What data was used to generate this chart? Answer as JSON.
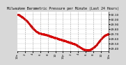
{
  "title": "Milwaukee Barometric Pressure per Minute (Last 24 Hours)",
  "bg_color": "#d8d8d8",
  "plot_bg_color": "#ffffff",
  "line_color": "#dd0000",
  "grid_color": "#888888",
  "ylim": [
    29.35,
    30.15
  ],
  "yticks": [
    29.4,
    29.5,
    29.6,
    29.7,
    29.8,
    29.9,
    30.0,
    30.1
  ],
  "ylabel_fontsize": 3.2,
  "title_fontsize": 3.5,
  "pressure_profile": [
    30.1,
    30.09,
    30.07,
    30.05,
    30.03,
    30.0,
    29.97,
    29.94,
    29.9,
    29.86,
    29.82,
    29.79,
    29.76,
    29.74,
    29.72,
    29.71,
    29.7,
    29.7,
    29.69,
    29.68,
    29.67,
    29.66,
    29.65,
    29.64,
    29.63,
    29.62,
    29.61,
    29.6,
    29.59,
    29.58,
    29.57,
    29.56,
    29.55,
    29.54,
    29.53,
    29.52,
    29.51,
    29.5,
    29.49,
    29.47,
    29.45,
    29.43,
    29.41,
    29.39,
    29.38,
    29.37,
    29.37,
    29.37,
    29.38,
    29.4,
    29.42,
    29.45,
    29.48,
    29.52,
    29.56,
    29.6,
    29.63,
    29.66,
    29.68,
    29.7
  ],
  "x_profile": [
    0.0,
    0.017,
    0.033,
    0.05,
    0.067,
    0.083,
    0.1,
    0.117,
    0.133,
    0.15,
    0.167,
    0.183,
    0.2,
    0.217,
    0.233,
    0.25,
    0.267,
    0.283,
    0.3,
    0.317,
    0.333,
    0.35,
    0.367,
    0.383,
    0.4,
    0.417,
    0.433,
    0.45,
    0.467,
    0.483,
    0.5,
    0.517,
    0.533,
    0.55,
    0.567,
    0.583,
    0.6,
    0.617,
    0.633,
    0.65,
    0.667,
    0.683,
    0.7,
    0.717,
    0.733,
    0.75,
    0.767,
    0.783,
    0.8,
    0.817,
    0.833,
    0.85,
    0.867,
    0.883,
    0.9,
    0.917,
    0.933,
    0.95,
    0.967,
    1.0
  ],
  "vgrid_positions": [
    0.083,
    0.167,
    0.25,
    0.333,
    0.417,
    0.5,
    0.583,
    0.667,
    0.75,
    0.833,
    0.917
  ],
  "xtick_positions": [
    0.0,
    0.083,
    0.167,
    0.25,
    0.333,
    0.417,
    0.5,
    0.583,
    0.667,
    0.75,
    0.833,
    0.917,
    1.0
  ],
  "xtick_labels": [
    "12a",
    "2",
    "4",
    "6",
    "8",
    "10",
    "12p",
    "2",
    "4",
    "6",
    "8",
    "10",
    "12a"
  ]
}
